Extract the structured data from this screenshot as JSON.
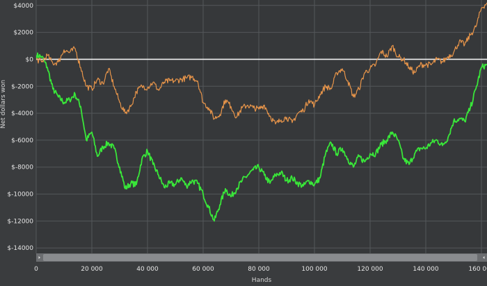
{
  "chart_data": {
    "type": "line",
    "title": "",
    "xlabel": "Hands",
    "ylabel": "Net dollars won",
    "xlim": [
      0,
      162000
    ],
    "ylim": [
      -14400,
      4400
    ],
    "x_ticks": [
      0,
      20000,
      40000,
      60000,
      80000,
      100000,
      120000,
      140000,
      160000
    ],
    "x_tick_labels": [
      "0",
      "20 000",
      "40 000",
      "60 000",
      "80 000",
      "100 000",
      "120 000",
      "140 000",
      "160 000"
    ],
    "y_ticks": [
      4000,
      2000,
      0,
      -2000,
      -4000,
      -6000,
      -8000,
      -10000,
      -12000,
      -14000
    ],
    "y_tick_labels": [
      "$4000",
      "$2000",
      "$0",
      "$-2000",
      "$-4000",
      "$-6000",
      "$-8000",
      "$-10000",
      "$-12000",
      "$-14000"
    ],
    "grid": true,
    "zero_line": true,
    "legend": "none",
    "series": [
      {
        "color": "#39e639",
        "x": [
          0,
          2000,
          4000,
          6000,
          8000,
          10000,
          12000,
          14000,
          16000,
          18000,
          20000,
          22000,
          24000,
          26000,
          28000,
          30000,
          32000,
          34000,
          36000,
          38000,
          40000,
          42000,
          44000,
          46000,
          48000,
          50000,
          52000,
          54000,
          56000,
          58000,
          60000,
          62000,
          64000,
          66000,
          68000,
          70000,
          72000,
          74000,
          76000,
          78000,
          80000,
          82000,
          84000,
          86000,
          88000,
          90000,
          92000,
          94000,
          96000,
          98000,
          100000,
          102000,
          104000,
          106000,
          108000,
          110000,
          112000,
          114000,
          116000,
          118000,
          120000,
          122000,
          124000,
          126000,
          128000,
          130000,
          132000,
          134000,
          136000,
          138000,
          140000,
          142000,
          144000,
          146000,
          148000,
          150000,
          152000,
          154000,
          156000,
          158000,
          160000,
          162000
        ],
        "y": [
          300,
          200,
          -600,
          -2200,
          -2800,
          -3200,
          -3000,
          -2600,
          -3500,
          -6000,
          -5400,
          -7200,
          -6500,
          -6200,
          -6600,
          -8000,
          -9600,
          -9200,
          -9300,
          -7400,
          -6800,
          -7800,
          -8600,
          -9500,
          -9200,
          -9300,
          -8800,
          -9400,
          -9000,
          -9200,
          -10000,
          -11000,
          -12000,
          -10800,
          -9600,
          -10200,
          -9600,
          -9000,
          -8600,
          -8200,
          -8000,
          -8600,
          -9200,
          -8600,
          -8400,
          -9000,
          -8800,
          -9200,
          -9400,
          -9000,
          -9300,
          -8800,
          -7000,
          -6200,
          -7000,
          -6600,
          -7400,
          -8000,
          -7200,
          -7600,
          -7000,
          -7000,
          -6300,
          -6000,
          -5400,
          -6000,
          -7400,
          -7800,
          -7000,
          -6600,
          -6600,
          -6200,
          -6000,
          -6400,
          -5800,
          -4600,
          -4400,
          -4600,
          -3600,
          -2200,
          -600,
          -400
        ]
      },
      {
        "color": "#e8954a",
        "x": [
          0,
          2000,
          4000,
          6000,
          8000,
          10000,
          12000,
          14000,
          16000,
          18000,
          20000,
          22000,
          24000,
          26000,
          28000,
          30000,
          32000,
          34000,
          36000,
          38000,
          40000,
          42000,
          44000,
          46000,
          48000,
          50000,
          52000,
          54000,
          56000,
          58000,
          60000,
          62000,
          64000,
          66000,
          68000,
          70000,
          72000,
          74000,
          76000,
          78000,
          80000,
          82000,
          84000,
          86000,
          88000,
          90000,
          92000,
          94000,
          96000,
          98000,
          100000,
          102000,
          104000,
          106000,
          108000,
          110000,
          112000,
          114000,
          116000,
          118000,
          120000,
          122000,
          124000,
          126000,
          128000,
          130000,
          132000,
          134000,
          136000,
          138000,
          140000,
          142000,
          144000,
          146000,
          148000,
          150000,
          152000,
          154000,
          156000,
          158000,
          160000,
          162000
        ],
        "y": [
          0,
          -200,
          300,
          -300,
          -200,
          700,
          500,
          800,
          -600,
          -2000,
          -2200,
          -1500,
          -1800,
          -700,
          -2000,
          -3200,
          -4000,
          -3500,
          -2400,
          -2000,
          -2100,
          -1700,
          -2300,
          -1700,
          -1600,
          -1600,
          -1500,
          -1400,
          -1300,
          -1600,
          -3200,
          -3600,
          -4400,
          -4100,
          -3000,
          -3500,
          -4300,
          -3600,
          -3400,
          -3600,
          -3700,
          -3400,
          -4200,
          -4800,
          -4500,
          -4300,
          -4700,
          -4000,
          -3800,
          -3000,
          -3400,
          -2600,
          -2000,
          -2200,
          -1000,
          -700,
          -1600,
          -2800,
          -2200,
          -1000,
          -700,
          -400,
          600,
          200,
          1000,
          200,
          0,
          -600,
          -1000,
          -400,
          -400,
          -400,
          0,
          -200,
          200,
          500,
          1300,
          1100,
          1800,
          2400,
          3800,
          4200
        ]
      }
    ]
  }
}
